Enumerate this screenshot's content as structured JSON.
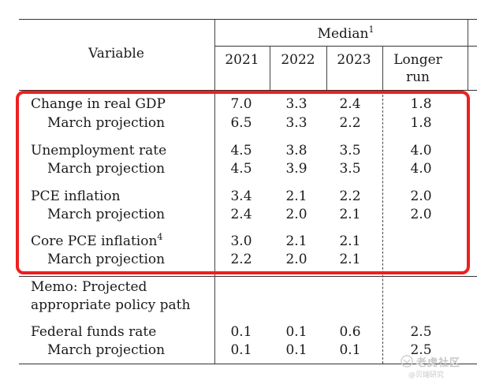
{
  "header": {
    "median": "Median",
    "median_note": "1",
    "variable": "Variable",
    "years": [
      "2021",
      "2022",
      "2023"
    ],
    "longer_run_line1": "Longer",
    "longer_run_line2": "run"
  },
  "rows": [
    {
      "label": "Change in real GDP",
      "values": [
        "7.0",
        "3.3",
        "2.4",
        "1.8"
      ]
    },
    {
      "label": "March projection",
      "values": [
        "6.5",
        "3.3",
        "2.2",
        "1.8"
      ]
    },
    {
      "label": "Unemployment rate",
      "values": [
        "4.5",
        "3.8",
        "3.5",
        "4.0"
      ]
    },
    {
      "label": "March projection",
      "values": [
        "4.5",
        "3.9",
        "3.5",
        "4.0"
      ]
    },
    {
      "label": "PCE inflation",
      "values": [
        "3.4",
        "2.1",
        "2.2",
        "2.0"
      ]
    },
    {
      "label": "March projection",
      "values": [
        "2.4",
        "2.0",
        "2.1",
        "2.0"
      ]
    },
    {
      "label": "Core PCE inflation",
      "note": "4",
      "values": [
        "3.0",
        "2.1",
        "2.1",
        ""
      ]
    },
    {
      "label": "March projection",
      "values": [
        "2.2",
        "2.0",
        "2.1",
        ""
      ]
    }
  ],
  "memo": {
    "line1": "Memo: Projected",
    "line2": "appropriate policy path"
  },
  "funds_rows": [
    {
      "label": "Federal funds rate",
      "values": [
        "0.1",
        "0.1",
        "0.6",
        "2.5"
      ]
    },
    {
      "label": "March projection",
      "values": [
        "0.1",
        "0.1",
        "0.1",
        "2.5"
      ]
    }
  ],
  "watermark": {
    "main": "老虎社区",
    "sub": "@贝瑞研究",
    "icon": "tiger-logo-icon"
  },
  "colors": {
    "highlight": "#ef1f1f",
    "rule": "#333333",
    "text": "#1a1a1a"
  }
}
